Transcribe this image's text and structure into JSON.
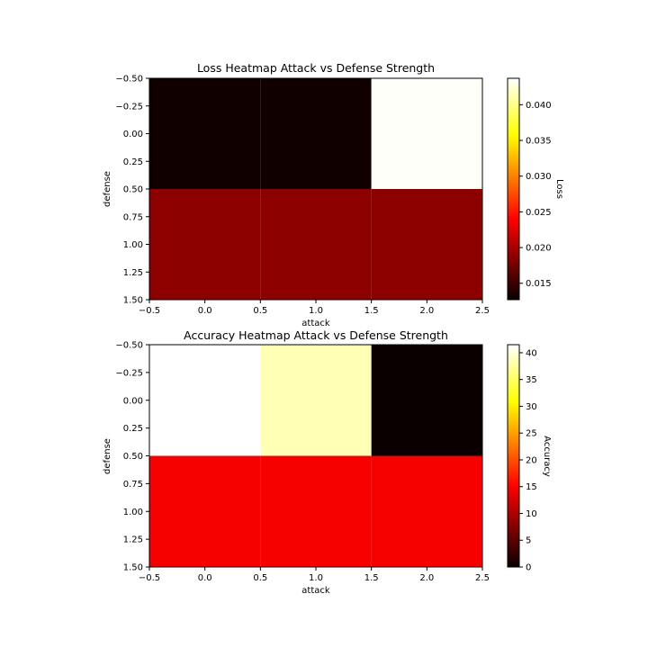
{
  "chart_data": [
    {
      "type": "heatmap",
      "title": "Loss Heatmap Attack vs Defense Strength",
      "xlabel": "attack",
      "ylabel": "defense",
      "xlim": [
        -0.5,
        2.5
      ],
      "ylim": [
        1.5,
        -0.5
      ],
      "xticks": [
        "−0.5",
        "0.0",
        "0.5",
        "1.0",
        "1.5",
        "2.0",
        "2.5"
      ],
      "yticks": [
        "−0.50",
        "−0.25",
        "0.00",
        "0.25",
        "0.50",
        "0.75",
        "1.00",
        "1.25",
        "1.50"
      ],
      "x": [
        0,
        1,
        2
      ],
      "y": [
        0,
        1
      ],
      "values": [
        [
          0.013,
          0.013,
          0.0435
        ],
        [
          0.0185,
          0.0185,
          0.0185
        ]
      ],
      "colormap": "hot",
      "colorbar": {
        "label": "Loss",
        "range": [
          0.0127,
          0.0437
        ],
        "ticks": [
          "0.015",
          "0.020",
          "0.025",
          "0.030",
          "0.035",
          "0.040"
        ]
      }
    },
    {
      "type": "heatmap",
      "title": "Accuracy Heatmap Attack vs Defense Strength",
      "xlabel": "attack",
      "ylabel": "defense",
      "xlim": [
        -0.5,
        2.5
      ],
      "ylim": [
        1.5,
        -0.5
      ],
      "xticks": [
        "−0.5",
        "0.0",
        "0.5",
        "1.0",
        "1.5",
        "2.0",
        "2.5"
      ],
      "yticks": [
        "−0.50",
        "−0.25",
        "0.00",
        "0.25",
        "0.50",
        "0.75",
        "1.00",
        "1.25",
        "1.50"
      ],
      "x": [
        0,
        1,
        2
      ],
      "y": [
        0,
        1
      ],
      "values": [
        [
          41.5,
          38.5,
          0.0
        ],
        [
          14.0,
          14.0,
          14.0
        ]
      ],
      "colormap": "hot",
      "colorbar": {
        "label": "Accuracy",
        "range": [
          0,
          41.5
        ],
        "ticks": [
          "0",
          "5",
          "10",
          "15",
          "20",
          "25",
          "30",
          "35",
          "40"
        ]
      }
    }
  ]
}
